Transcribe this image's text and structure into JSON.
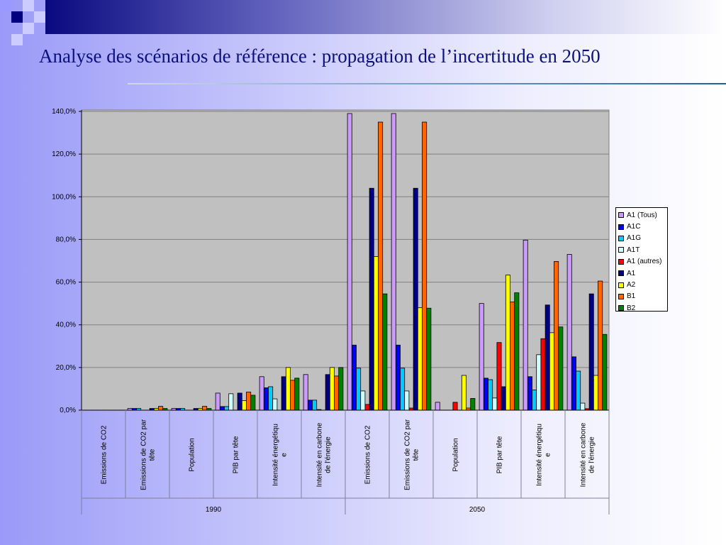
{
  "title": "Analyse des scénarios de référence : propagation de l’incertitude en 2050",
  "chart_data": {
    "type": "bar",
    "title": "Analyse des scénarios de référence : propagation de l’incertitude en 2050",
    "ylim": [
      0,
      140
    ],
    "yticks": [
      "0,0%",
      "20,0%",
      "40,0%",
      "60,0%",
      "80,0%",
      "100,0%",
      "120,0%",
      "140,0%"
    ],
    "groups": [
      "1990",
      "2050"
    ],
    "categories": [
      "Emissions de CO2",
      "Emissions de CO2 par tête",
      "Population",
      "PIB par tête",
      "Intensité énergétique",
      "Intensité en carbone de l'énergie",
      "Emissions de CO2",
      "Emissions de CO2 par tête",
      "Population",
      "PIB par tête",
      "Intensité énergétique",
      "Intensité en carbone de l'énergie"
    ],
    "legend_position": "right",
    "series": [
      {
        "name": "A1 (Tous)",
        "color": "#cc99ff",
        "values": [
          0,
          0.8,
          0.8,
          8,
          15.7,
          16.7,
          139,
          139,
          3.7,
          50,
          79.7,
          73
        ]
      },
      {
        "name": "A1C",
        "color": "#0000ff",
        "values": [
          0,
          0.8,
          0.8,
          1.7,
          10.5,
          4.7,
          30.5,
          30.5,
          0,
          15,
          15.7,
          25
        ]
      },
      {
        "name": "A1G",
        "color": "#00ccff",
        "values": [
          0,
          0.8,
          0.8,
          1.7,
          11,
          4.7,
          19.7,
          19.7,
          0,
          14.3,
          9.5,
          18.3
        ]
      },
      {
        "name": "A1T",
        "color": "#ccffff",
        "values": [
          0,
          0,
          0,
          7.7,
          5.3,
          0.3,
          9,
          9,
          0,
          5.7,
          26,
          3.3
        ]
      },
      {
        "name": "A1 (autres)",
        "color": "#ff0000",
        "values": [
          0,
          0,
          0,
          0,
          0,
          0,
          2.7,
          1,
          3.7,
          31.7,
          33.5,
          0.7
        ]
      },
      {
        "name": "A1",
        "color": "#000080",
        "values": [
          0,
          0.8,
          0.8,
          8,
          15.7,
          16.7,
          104,
          104,
          0,
          11,
          49.3,
          54.5
        ]
      },
      {
        "name": "A2",
        "color": "#ffff00",
        "values": [
          0,
          0.8,
          0.8,
          4.5,
          20,
          20,
          72,
          48,
          16.3,
          63.3,
          36.3,
          16.3
        ]
      },
      {
        "name": "B1",
        "color": "#ff6600",
        "values": [
          0,
          1.8,
          1.8,
          8.5,
          14,
          16,
          135,
          135,
          1,
          50.7,
          69.7,
          60.5
        ]
      },
      {
        "name": "B2",
        "color": "#008000",
        "values": [
          0,
          0.8,
          0.8,
          7,
          15,
          20,
          54.5,
          47.8,
          5.5,
          55,
          39,
          35.5
        ]
      }
    ]
  }
}
